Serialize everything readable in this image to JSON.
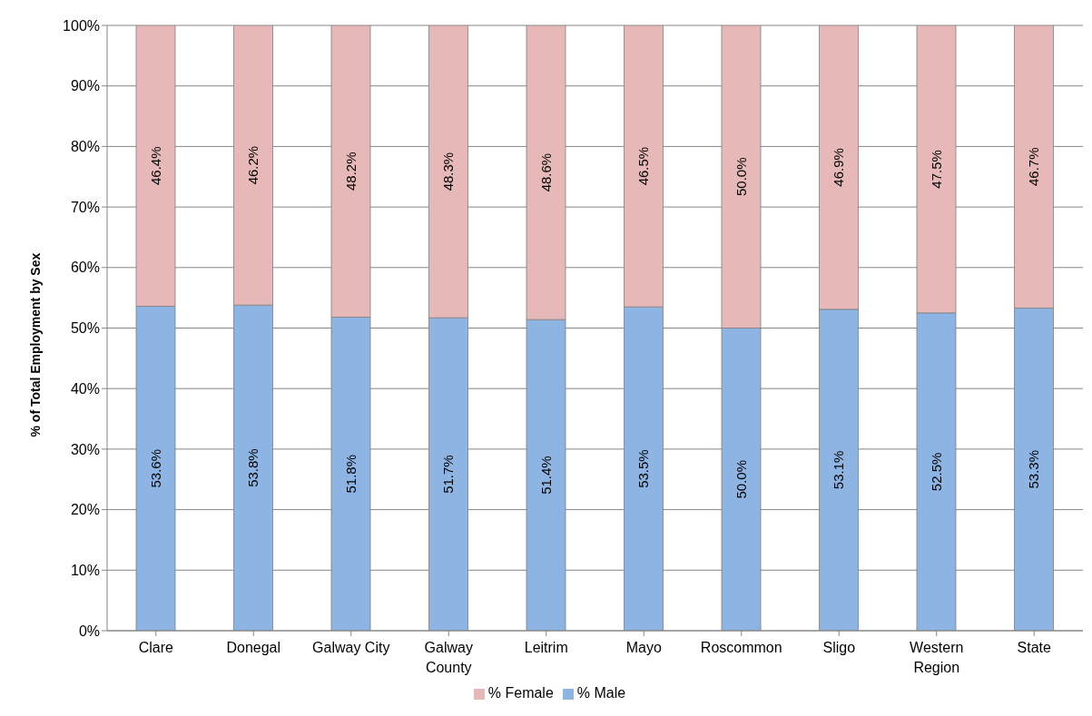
{
  "chart_data": {
    "type": "bar",
    "stacked": true,
    "ylabel": "% of Total Employment by Sex",
    "categories": [
      "Clare",
      "Donegal",
      "Galway City",
      "Galway County",
      "Leitrim",
      "Mayo",
      "Roscommon",
      "Sligo",
      "Western Region",
      "State"
    ],
    "series": [
      {
        "name": "% Male",
        "color": "#8eb4e3",
        "values": [
          53.6,
          53.8,
          51.8,
          51.7,
          51.4,
          53.5,
          50.0,
          53.1,
          52.5,
          53.3
        ],
        "value_labels": [
          "53.6%",
          "53.8%",
          "51.8%",
          "51.7%",
          "51.4%",
          "53.5%",
          "50.0%",
          "53.1%",
          "52.5%",
          "53.3%"
        ]
      },
      {
        "name": "% Female",
        "color": "#e6b9b8",
        "values": [
          46.4,
          46.2,
          48.2,
          48.3,
          48.6,
          46.5,
          50.0,
          46.9,
          47.5,
          46.7
        ],
        "value_labels": [
          "46.4%",
          "46.2%",
          "48.2%",
          "48.3%",
          "48.6%",
          "46.5%",
          "50.0%",
          "46.9%",
          "47.5%",
          "46.7%"
        ]
      }
    ],
    "ylim": [
      0,
      100
    ],
    "yticks": [
      {
        "value": 0,
        "label": "0%"
      },
      {
        "value": 10,
        "label": "10%"
      },
      {
        "value": 20,
        "label": "20%"
      },
      {
        "value": 30,
        "label": "30%"
      },
      {
        "value": 40,
        "label": "40%"
      },
      {
        "value": 50,
        "label": "50%"
      },
      {
        "value": 60,
        "label": "60%"
      },
      {
        "value": 70,
        "label": "70%"
      },
      {
        "value": 80,
        "label": "80%"
      },
      {
        "value": 90,
        "label": "90%"
      },
      {
        "value": 100,
        "label": "100%"
      }
    ],
    "grid": "y",
    "legend": "bottom"
  }
}
